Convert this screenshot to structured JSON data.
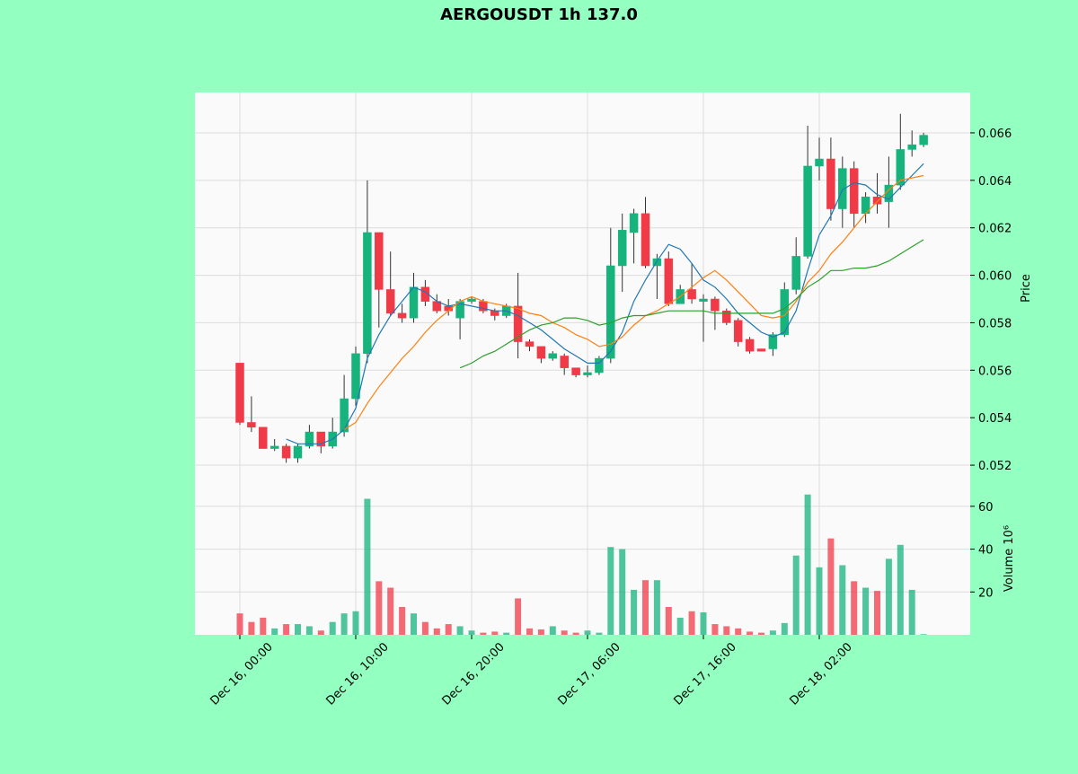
{
  "chart_data": {
    "type": "candlestick",
    "title": "AERGOUSDT 1h 137.0",
    "categories": [
      "Dec 16, 00:00",
      null,
      null,
      null,
      null,
      null,
      null,
      null,
      null,
      null,
      "Dec 16, 10:00",
      null,
      null,
      null,
      null,
      null,
      null,
      null,
      null,
      null,
      "Dec 16, 20:00",
      null,
      null,
      null,
      null,
      null,
      null,
      null,
      null,
      null,
      "Dec 17, 06:00",
      null,
      null,
      null,
      null,
      null,
      null,
      null,
      null,
      null,
      "Dec 17, 16:00",
      null,
      null,
      null,
      null,
      null,
      null,
      null,
      null,
      null,
      "Dec 18, 02:00",
      null,
      null,
      null,
      null,
      null,
      null,
      null,
      null,
      null
    ],
    "open": [
      0.0563,
      0.0538,
      0.0536,
      0.0527,
      0.0528,
      0.0523,
      0.0528,
      0.0534,
      0.0528,
      0.0534,
      0.0548,
      0.0567,
      0.0618,
      0.0594,
      0.0584,
      0.0582,
      0.0595,
      0.0589,
      0.0587,
      0.0582,
      0.0589,
      0.0589,
      0.0585,
      0.0583,
      0.0587,
      0.0572,
      0.057,
      0.0565,
      0.0566,
      0.0561,
      0.0558,
      0.0559,
      0.0565,
      0.0604,
      0.0618,
      0.0626,
      0.0604,
      0.0607,
      0.0588,
      0.0594,
      0.0589,
      0.059,
      0.0585,
      0.0581,
      0.0573,
      0.0569,
      0.0569,
      0.0575,
      0.0594,
      0.0608,
      0.0646,
      0.0649,
      0.0628,
      0.0645,
      0.0626,
      0.0633,
      0.0631,
      0.0638,
      0.0653,
      0.0655
    ],
    "high": [
      0.0563,
      0.0549,
      0.0536,
      0.0531,
      0.0529,
      0.0529,
      0.0537,
      0.0534,
      0.054,
      0.0558,
      0.057,
      0.064,
      0.0618,
      0.061,
      0.0588,
      0.0601,
      0.0598,
      0.0592,
      0.059,
      0.059,
      0.0591,
      0.059,
      0.0586,
      0.0588,
      0.0601,
      0.0573,
      0.057,
      0.0568,
      0.0567,
      0.0561,
      0.0562,
      0.0566,
      0.062,
      0.0626,
      0.0628,
      0.0633,
      0.0609,
      0.061,
      0.0596,
      0.0605,
      0.0592,
      0.0591,
      0.0586,
      0.0582,
      0.0574,
      0.0569,
      0.0576,
      0.0597,
      0.0616,
      0.0663,
      0.0658,
      0.0658,
      0.065,
      0.0648,
      0.0635,
      0.0643,
      0.065,
      0.0668,
      0.0661,
      0.066
    ],
    "low": [
      0.0537,
      0.0534,
      0.0527,
      0.0526,
      0.0521,
      0.0521,
      0.0527,
      0.0525,
      0.0527,
      0.0532,
      0.0545,
      0.0563,
      0.0578,
      0.0583,
      0.058,
      0.058,
      0.0587,
      0.0584,
      0.0583,
      0.0573,
      0.0588,
      0.0584,
      0.0581,
      0.0582,
      0.0565,
      0.0568,
      0.0563,
      0.0564,
      0.0558,
      0.0557,
      0.0557,
      0.0558,
      0.0563,
      0.0593,
      0.0605,
      0.0603,
      0.059,
      0.0587,
      0.0588,
      0.0588,
      0.0572,
      0.0577,
      0.0579,
      0.057,
      0.0567,
      0.0568,
      0.0566,
      0.0574,
      0.0592,
      0.0607,
      0.064,
      0.0623,
      0.062,
      0.062,
      0.0622,
      0.0626,
      0.062,
      0.0636,
      0.065,
      0.0654
    ],
    "close": [
      0.0538,
      0.0536,
      0.0527,
      0.0528,
      0.0523,
      0.0528,
      0.0534,
      0.0528,
      0.0534,
      0.0548,
      0.0567,
      0.0618,
      0.0594,
      0.0584,
      0.0582,
      0.0595,
      0.0589,
      0.0585,
      0.0585,
      0.0589,
      0.059,
      0.0585,
      0.0583,
      0.0587,
      0.0572,
      0.057,
      0.0565,
      0.0567,
      0.0561,
      0.0558,
      0.0559,
      0.0565,
      0.0604,
      0.0619,
      0.0626,
      0.0604,
      0.0607,
      0.0588,
      0.0594,
      0.059,
      0.059,
      0.0585,
      0.058,
      0.0572,
      0.0568,
      0.0568,
      0.0575,
      0.0594,
      0.0608,
      0.0646,
      0.0649,
      0.0628,
      0.0645,
      0.0626,
      0.0633,
      0.063,
      0.0638,
      0.0653,
      0.0655,
      0.0659
    ],
    "volume": [
      10,
      6,
      8,
      3,
      5,
      5,
      4,
      2,
      6,
      10,
      11,
      63.5,
      25,
      22,
      13,
      10,
      6,
      3,
      5,
      4,
      2,
      1,
      1.5,
      1,
      17,
      3,
      2.5,
      4,
      2,
      1,
      2,
      1,
      41,
      40,
      21,
      25.5,
      25.5,
      13,
      8,
      11,
      10.5,
      5,
      4,
      3,
      1.5,
      1,
      2,
      5.5,
      37,
      65.5,
      31.5,
      45,
      32.5,
      25,
      22,
      20.5,
      35.5,
      42,
      21,
      0.3
    ],
    "up_color": "#16b37d",
    "down_color": "#f03a47",
    "ma": [
      {
        "color": "#1f77b4",
        "values": [
          null,
          null,
          null,
          null,
          0.0531,
          0.0529,
          0.0529,
          0.0529,
          0.0531,
          0.0535,
          0.0544,
          0.0565,
          0.0575,
          0.0583,
          0.0589,
          0.0595,
          0.0593,
          0.0589,
          0.0587,
          0.0588,
          0.0587,
          0.0586,
          0.0585,
          0.0585,
          0.0583,
          0.058,
          0.0577,
          0.0573,
          0.0569,
          0.0566,
          0.0563,
          0.0563,
          0.0568,
          0.0576,
          0.0589,
          0.0598,
          0.0606,
          0.0613,
          0.0611,
          0.0605,
          0.0598,
          0.0595,
          0.059,
          0.0584,
          0.058,
          0.0576,
          0.0574,
          0.0576,
          0.0585,
          0.0602,
          0.0617,
          0.0625,
          0.0636,
          0.0639,
          0.0638,
          0.0634,
          0.0632,
          0.0637,
          0.0642,
          0.0647
        ]
      },
      {
        "color": "#ff7f0e",
        "values": [
          null,
          null,
          null,
          null,
          null,
          null,
          null,
          null,
          null,
          0.0535,
          0.0538,
          0.0546,
          0.0553,
          0.0559,
          0.0565,
          0.057,
          0.0576,
          0.0581,
          0.0585,
          0.0589,
          0.0591,
          0.0589,
          0.0588,
          0.0587,
          0.0586,
          0.0584,
          0.0583,
          0.058,
          0.0578,
          0.0575,
          0.0573,
          0.057,
          0.0571,
          0.0574,
          0.0579,
          0.0583,
          0.0585,
          0.0588,
          0.0591,
          0.0595,
          0.0599,
          0.0602,
          0.0598,
          0.0593,
          0.0588,
          0.0583,
          0.0582,
          0.0583,
          0.0589,
          0.0597,
          0.0602,
          0.0609,
          0.0614,
          0.062,
          0.0626,
          0.0631,
          0.0636,
          0.064,
          0.0641,
          0.0642
        ]
      },
      {
        "color": "#2ca02c",
        "values": [
          null,
          null,
          null,
          null,
          null,
          null,
          null,
          null,
          null,
          null,
          null,
          null,
          null,
          null,
          null,
          null,
          null,
          null,
          null,
          0.0561,
          0.0563,
          0.0566,
          0.0568,
          0.0571,
          0.0574,
          0.0577,
          0.0579,
          0.058,
          0.0582,
          0.0582,
          0.0581,
          0.0579,
          0.058,
          0.0582,
          0.0583,
          0.0583,
          0.0584,
          0.0585,
          0.0585,
          0.0585,
          0.0585,
          0.0584,
          0.0584,
          0.0584,
          0.0584,
          0.0584,
          0.0584,
          0.0586,
          0.059,
          0.0595,
          0.0598,
          0.0602,
          0.0602,
          0.0603,
          0.0603,
          0.0604,
          0.0606,
          0.0609,
          0.0612,
          0.0615
        ]
      }
    ],
    "ylabel": "Price",
    "ylim": [
      0.05117,
      0.0677
    ],
    "yticks": [
      0.052,
      0.054,
      0.056,
      0.058,
      0.06,
      0.062,
      0.064,
      0.066
    ],
    "ytick_labels": [
      "0.052",
      "0.054",
      "0.056",
      "0.058",
      "0.060",
      "0.062",
      "0.064",
      "0.066"
    ],
    "y2label": "Volume  10⁶",
    "y2lim": [
      0,
      70
    ],
    "y2ticks": [
      20,
      40,
      60
    ],
    "grid": true
  }
}
